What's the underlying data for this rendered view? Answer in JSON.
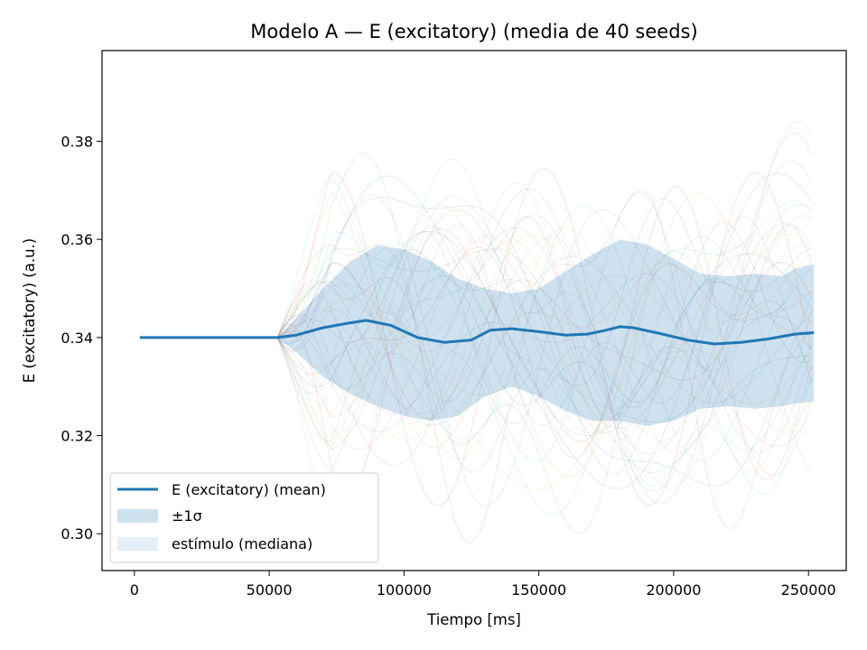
{
  "chart_data": {
    "type": "line",
    "title": "Modelo A — E (excitatory) (media de 40 seeds)",
    "xlabel": "Tiempo [ms]",
    "ylabel": "E (excitatory) (a.u.)",
    "xlim": [
      -12000,
      264000
    ],
    "ylim": [
      0.2925,
      0.3985
    ],
    "xticks": [
      0,
      50000,
      100000,
      150000,
      200000,
      250000
    ],
    "xtick_labels": [
      "0",
      "50000",
      "100000",
      "150000",
      "200000",
      "250000"
    ],
    "yticks": [
      0.3,
      0.32,
      0.34,
      0.36,
      0.38
    ],
    "ytick_labels": [
      "0.30",
      "0.32",
      "0.34",
      "0.36",
      "0.38"
    ],
    "grid": false,
    "legend_position": "lower-left",
    "series": [
      {
        "name": "E (excitatory) (mean)",
        "color": "#1f77b4",
        "x": [
          2000,
          20000,
          40000,
          53000,
          60000,
          70000,
          80000,
          86000,
          95000,
          105000,
          115000,
          125000,
          132000,
          140000,
          150000,
          160000,
          168000,
          175000,
          180000,
          185000,
          195000,
          205000,
          215000,
          225000,
          235000,
          245000,
          252000
        ],
        "y": [
          0.34,
          0.34,
          0.34,
          0.34,
          0.3405,
          0.342,
          0.343,
          0.3435,
          0.3425,
          0.34,
          0.339,
          0.3395,
          0.3415,
          0.3418,
          0.3412,
          0.3405,
          0.3407,
          0.3415,
          0.3422,
          0.342,
          0.3408,
          0.3395,
          0.3387,
          0.339,
          0.3397,
          0.3407,
          0.341
        ]
      }
    ],
    "band": {
      "name": "±1σ",
      "color": "#1f77b4",
      "opacity": 0.22,
      "x": [
        53000,
        60000,
        70000,
        80000,
        90000,
        100000,
        110000,
        120000,
        130000,
        140000,
        150000,
        160000,
        170000,
        180000,
        190000,
        200000,
        210000,
        220000,
        230000,
        240000,
        245000,
        252000
      ],
      "upper": [
        0.34,
        0.344,
        0.35,
        0.3555,
        0.3588,
        0.358,
        0.3555,
        0.352,
        0.35,
        0.349,
        0.35,
        0.3535,
        0.357,
        0.36,
        0.359,
        0.356,
        0.353,
        0.3525,
        0.353,
        0.3525,
        0.354,
        0.355
      ],
      "lower": [
        0.34,
        0.337,
        0.332,
        0.3285,
        0.326,
        0.324,
        0.323,
        0.324,
        0.328,
        0.33,
        0.328,
        0.325,
        0.323,
        0.323,
        0.322,
        0.323,
        0.3255,
        0.326,
        0.3255,
        0.326,
        0.3265,
        0.327
      ]
    },
    "legend": [
      {
        "label": "E (excitatory) (mean)",
        "kind": "line",
        "color": "#1f77b4"
      },
      {
        "label": "±1σ",
        "kind": "patch",
        "color": "#1f77b4",
        "opacity": 0.22
      },
      {
        "label": "estímulo (mediana)",
        "kind": "patch",
        "color": "#1f77b4",
        "opacity": 0.12
      }
    ]
  }
}
